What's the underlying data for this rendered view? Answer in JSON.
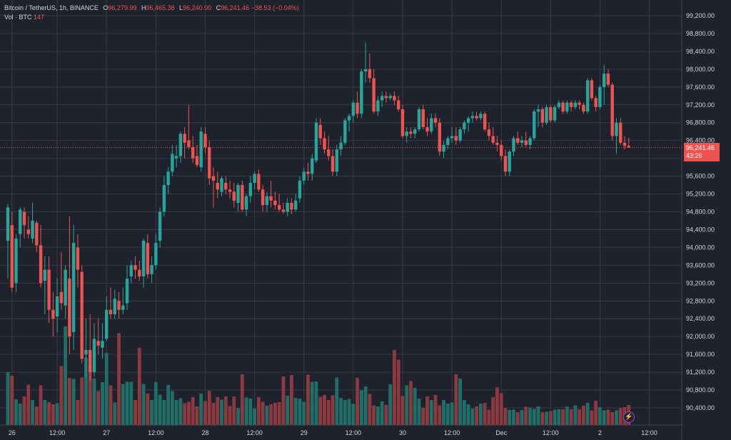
{
  "legend": {
    "symbol": "Bitcoin / TetherUS, 1h, BINANCE",
    "open_key": "O",
    "open": "96,279.99",
    "high_key": "H",
    "high": "96,465.38",
    "low_key": "L",
    "low": "96,240.00",
    "close_key": "C",
    "close": "96,241.46",
    "change": "−38.53 (−0.04%)",
    "vol_label": "Vol · BTC",
    "vol_value": "147"
  },
  "price_tag": {
    "price": "96,241.46",
    "countdown": "43:26"
  },
  "colors": {
    "background": "#1e222d",
    "grid": "#363a45",
    "up": "#26a69a",
    "down": "#ef5350",
    "up_volume": "#1f6f68",
    "down_volume": "#8c3a3f"
  },
  "icons": {
    "indicator_badge": "lightning-bolt-icon"
  },
  "chart_data": {
    "type": "candlestick",
    "symbol": "Bitcoin / TetherUS",
    "interval": "1h",
    "exchange": "BINANCE",
    "y_ticks": [
      90400,
      90800,
      91200,
      91600,
      92000,
      92400,
      92800,
      93200,
      93600,
      94000,
      94400,
      94800,
      95200,
      95600,
      96000,
      96400,
      96800,
      97200,
      97600,
      98000,
      98400,
      98800,
      99200
    ],
    "y_tick_labels": [
      "90,400.00",
      "90,800.00",
      "91,200.00",
      "91,600.00",
      "92,000.00",
      "92,400.00",
      "92,800.00",
      "93,200.00",
      "93,600.00",
      "94,000.00",
      "94,400.00",
      "94,800.00",
      "95,200.00",
      "95,600.00",
      "96,000.00",
      "96,400.00",
      "96,800.00",
      "97,200.00",
      "97,600.00",
      "98,000.00",
      "98,400.00",
      "98,800.00",
      "99,200.00"
    ],
    "x_tick_labels": [
      "26",
      "12:00",
      "27",
      "12:00",
      "28",
      "12:00",
      "29",
      "12:00",
      "30",
      "12:00",
      "Dec",
      "12:00",
      "2",
      "12:00"
    ],
    "x_tick_bars": [
      1,
      12,
      24,
      36,
      48,
      60,
      72,
      84,
      96,
      108,
      120,
      132,
      144,
      156
    ],
    "ylim": [
      90200,
      99500
    ],
    "last_price": 96241.46,
    "candles": [
      {
        "o": 94150,
        "h": 94980,
        "l": 93300,
        "c": 94900
      },
      {
        "o": 94500,
        "h": 94800,
        "l": 93000,
        "c": 93100
      },
      {
        "o": 93200,
        "h": 94300,
        "l": 93000,
        "c": 94200
      },
      {
        "o": 94300,
        "h": 94900,
        "l": 94000,
        "c": 94850
      },
      {
        "o": 94800,
        "h": 94900,
        "l": 94200,
        "c": 94500
      },
      {
        "o": 94400,
        "h": 94700,
        "l": 94200,
        "c": 94300
      },
      {
        "o": 94200,
        "h": 95000,
        "l": 94100,
        "c": 94600
      },
      {
        "o": 94550,
        "h": 94600,
        "l": 93900,
        "c": 94050
      },
      {
        "o": 94050,
        "h": 94500,
        "l": 93100,
        "c": 93200
      },
      {
        "o": 93250,
        "h": 93800,
        "l": 92500,
        "c": 93500
      },
      {
        "o": 93500,
        "h": 93800,
        "l": 92300,
        "c": 92600
      },
      {
        "o": 92600,
        "h": 93000,
        "l": 92000,
        "c": 92400
      },
      {
        "o": 92450,
        "h": 93300,
        "l": 92100,
        "c": 92900
      },
      {
        "o": 93000,
        "h": 93900,
        "l": 92600,
        "c": 92750
      },
      {
        "o": 92700,
        "h": 93600,
        "l": 92400,
        "c": 93500
      },
      {
        "o": 93300,
        "h": 94700,
        "l": 91600,
        "c": 92000
      },
      {
        "o": 92100,
        "h": 94500,
        "l": 91700,
        "c": 94100
      },
      {
        "o": 94000,
        "h": 94300,
        "l": 93100,
        "c": 93500
      },
      {
        "o": 93450,
        "h": 93600,
        "l": 91400,
        "c": 91500
      },
      {
        "o": 91600,
        "h": 92400,
        "l": 91100,
        "c": 91700
      },
      {
        "o": 91700,
        "h": 92500,
        "l": 91000,
        "c": 91200
      },
      {
        "o": 91200,
        "h": 92300,
        "l": 91100,
        "c": 91950
      },
      {
        "o": 91900,
        "h": 92400,
        "l": 91600,
        "c": 91800
      },
      {
        "o": 91750,
        "h": 92300,
        "l": 91500,
        "c": 91900
      },
      {
        "o": 91950,
        "h": 92900,
        "l": 91900,
        "c": 92600
      },
      {
        "o": 92600,
        "h": 93100,
        "l": 92400,
        "c": 92500
      },
      {
        "o": 92500,
        "h": 93050,
        "l": 92400,
        "c": 92850
      },
      {
        "o": 92800,
        "h": 93000,
        "l": 92400,
        "c": 92600
      },
      {
        "o": 92600,
        "h": 93100,
        "l": 92500,
        "c": 92700
      },
      {
        "o": 92750,
        "h": 93600,
        "l": 92600,
        "c": 93300
      },
      {
        "o": 93350,
        "h": 93700,
        "l": 93200,
        "c": 93600
      },
      {
        "o": 93600,
        "h": 93800,
        "l": 93300,
        "c": 93500
      },
      {
        "o": 93500,
        "h": 93700,
        "l": 93250,
        "c": 93350
      },
      {
        "o": 93350,
        "h": 94200,
        "l": 93100,
        "c": 94150
      },
      {
        "o": 94100,
        "h": 94300,
        "l": 93300,
        "c": 93400
      },
      {
        "o": 93400,
        "h": 93800,
        "l": 93200,
        "c": 93600
      },
      {
        "o": 93600,
        "h": 94300,
        "l": 93500,
        "c": 94100
      },
      {
        "o": 94150,
        "h": 94900,
        "l": 94000,
        "c": 94800
      },
      {
        "o": 94800,
        "h": 95600,
        "l": 94700,
        "c": 95400
      },
      {
        "o": 95400,
        "h": 95800,
        "l": 95200,
        "c": 95700
      },
      {
        "o": 95700,
        "h": 96300,
        "l": 95600,
        "c": 96100
      },
      {
        "o": 96000,
        "h": 96300,
        "l": 95800,
        "c": 96050
      },
      {
        "o": 96050,
        "h": 96600,
        "l": 95900,
        "c": 96550
      },
      {
        "o": 96550,
        "h": 96700,
        "l": 96000,
        "c": 96350
      },
      {
        "o": 96400,
        "h": 97200,
        "l": 96200,
        "c": 96250
      },
      {
        "o": 96250,
        "h": 96500,
        "l": 95900,
        "c": 96000
      },
      {
        "o": 96050,
        "h": 96300,
        "l": 95800,
        "c": 95850
      },
      {
        "o": 95800,
        "h": 96700,
        "l": 95700,
        "c": 96600
      },
      {
        "o": 96550,
        "h": 96700,
        "l": 96100,
        "c": 96250
      },
      {
        "o": 96250,
        "h": 96400,
        "l": 95400,
        "c": 95550
      },
      {
        "o": 95600,
        "h": 95800,
        "l": 94900,
        "c": 95500
      },
      {
        "o": 95450,
        "h": 95700,
        "l": 95100,
        "c": 95300
      },
      {
        "o": 95250,
        "h": 95600,
        "l": 95150,
        "c": 95550
      },
      {
        "o": 95450,
        "h": 95600,
        "l": 95200,
        "c": 95300
      },
      {
        "o": 95300,
        "h": 95500,
        "l": 95100,
        "c": 95250
      },
      {
        "o": 95250,
        "h": 95450,
        "l": 94900,
        "c": 95050
      },
      {
        "o": 95000,
        "h": 95450,
        "l": 94800,
        "c": 95400
      },
      {
        "o": 95400,
        "h": 95500,
        "l": 94800,
        "c": 94850
      },
      {
        "o": 94850,
        "h": 95200,
        "l": 94700,
        "c": 95150
      },
      {
        "o": 95150,
        "h": 95600,
        "l": 95000,
        "c": 95450
      },
      {
        "o": 95450,
        "h": 95700,
        "l": 95300,
        "c": 95650
      },
      {
        "o": 95650,
        "h": 95750,
        "l": 95250,
        "c": 95300
      },
      {
        "o": 95300,
        "h": 95400,
        "l": 94800,
        "c": 94950
      },
      {
        "o": 94950,
        "h": 95250,
        "l": 94800,
        "c": 95150
      },
      {
        "o": 95150,
        "h": 95500,
        "l": 94900,
        "c": 95050
      },
      {
        "o": 95050,
        "h": 95250,
        "l": 94850,
        "c": 94950
      },
      {
        "o": 94950,
        "h": 95200,
        "l": 94800,
        "c": 94850
      },
      {
        "o": 94850,
        "h": 95000,
        "l": 94750,
        "c": 94800
      },
      {
        "o": 94800,
        "h": 95100,
        "l": 94700,
        "c": 95000
      },
      {
        "o": 95000,
        "h": 95100,
        "l": 94750,
        "c": 94850
      },
      {
        "o": 94850,
        "h": 95200,
        "l": 94800,
        "c": 95050
      },
      {
        "o": 95100,
        "h": 95600,
        "l": 95000,
        "c": 95500
      },
      {
        "o": 95500,
        "h": 95800,
        "l": 95400,
        "c": 95700
      },
      {
        "o": 95700,
        "h": 95900,
        "l": 95500,
        "c": 95650
      },
      {
        "o": 95650,
        "h": 96100,
        "l": 95500,
        "c": 96000
      },
      {
        "o": 95950,
        "h": 96900,
        "l": 95900,
        "c": 96800
      },
      {
        "o": 96750,
        "h": 96900,
        "l": 96300,
        "c": 96450
      },
      {
        "o": 96450,
        "h": 96600,
        "l": 96100,
        "c": 96200
      },
      {
        "o": 96200,
        "h": 96500,
        "l": 95950,
        "c": 96050
      },
      {
        "o": 96050,
        "h": 96200,
        "l": 95600,
        "c": 95700
      },
      {
        "o": 95700,
        "h": 96300,
        "l": 95600,
        "c": 96200
      },
      {
        "o": 96200,
        "h": 96500,
        "l": 96050,
        "c": 96350
      },
      {
        "o": 96350,
        "h": 96900,
        "l": 96300,
        "c": 96850
      },
      {
        "o": 96850,
        "h": 97000,
        "l": 96600,
        "c": 96950
      },
      {
        "o": 96950,
        "h": 97300,
        "l": 96800,
        "c": 97250
      },
      {
        "o": 97250,
        "h": 97500,
        "l": 96900,
        "c": 97000
      },
      {
        "o": 97000,
        "h": 98000,
        "l": 96900,
        "c": 97950
      },
      {
        "o": 97950,
        "h": 98600,
        "l": 97700,
        "c": 98000
      },
      {
        "o": 98000,
        "h": 98350,
        "l": 97700,
        "c": 97800
      },
      {
        "o": 97800,
        "h": 98000,
        "l": 97000,
        "c": 97050
      },
      {
        "o": 97050,
        "h": 97400,
        "l": 96950,
        "c": 97300
      },
      {
        "o": 97300,
        "h": 97500,
        "l": 97150,
        "c": 97400
      },
      {
        "o": 97400,
        "h": 97500,
        "l": 97250,
        "c": 97350
      },
      {
        "o": 97350,
        "h": 97450,
        "l": 97300,
        "c": 97400
      },
      {
        "o": 97400,
        "h": 97500,
        "l": 97200,
        "c": 97300
      },
      {
        "o": 97300,
        "h": 97400,
        "l": 97050,
        "c": 97100
      },
      {
        "o": 97100,
        "h": 97200,
        "l": 96450,
        "c": 96500
      },
      {
        "o": 96500,
        "h": 96700,
        "l": 96350,
        "c": 96600
      },
      {
        "o": 96600,
        "h": 96700,
        "l": 96450,
        "c": 96550
      },
      {
        "o": 96550,
        "h": 96700,
        "l": 96450,
        "c": 96650
      },
      {
        "o": 96650,
        "h": 97150,
        "l": 96600,
        "c": 97100
      },
      {
        "o": 97100,
        "h": 97200,
        "l": 96650,
        "c": 96700
      },
      {
        "o": 96700,
        "h": 96900,
        "l": 96500,
        "c": 96600
      },
      {
        "o": 96600,
        "h": 97000,
        "l": 96550,
        "c": 96900
      },
      {
        "o": 96900,
        "h": 97000,
        "l": 96700,
        "c": 96800
      },
      {
        "o": 96800,
        "h": 96900,
        "l": 96050,
        "c": 96150
      },
      {
        "o": 96150,
        "h": 96400,
        "l": 96000,
        "c": 96300
      },
      {
        "o": 96300,
        "h": 96500,
        "l": 96200,
        "c": 96450
      },
      {
        "o": 96450,
        "h": 96700,
        "l": 96350,
        "c": 96500
      },
      {
        "o": 96500,
        "h": 96700,
        "l": 96300,
        "c": 96400
      },
      {
        "o": 96400,
        "h": 96700,
        "l": 96350,
        "c": 96650
      },
      {
        "o": 96650,
        "h": 96850,
        "l": 96550,
        "c": 96800
      },
      {
        "o": 96800,
        "h": 96950,
        "l": 96600,
        "c": 96900
      },
      {
        "o": 96900,
        "h": 97050,
        "l": 96800,
        "c": 96950
      },
      {
        "o": 96950,
        "h": 97050,
        "l": 96850,
        "c": 96900
      },
      {
        "o": 96900,
        "h": 97050,
        "l": 96850,
        "c": 97000
      },
      {
        "o": 97000,
        "h": 97050,
        "l": 96600,
        "c": 96650
      },
      {
        "o": 96650,
        "h": 96800,
        "l": 96400,
        "c": 96500
      },
      {
        "o": 96500,
        "h": 96700,
        "l": 96300,
        "c": 96350
      },
      {
        "o": 96350,
        "h": 96500,
        "l": 96150,
        "c": 96300
      },
      {
        "o": 96300,
        "h": 96400,
        "l": 95950,
        "c": 96050
      },
      {
        "o": 96050,
        "h": 96200,
        "l": 95600,
        "c": 95700
      },
      {
        "o": 95700,
        "h": 96200,
        "l": 95600,
        "c": 96150
      },
      {
        "o": 96150,
        "h": 96500,
        "l": 96050,
        "c": 96450
      },
      {
        "o": 96450,
        "h": 96600,
        "l": 96300,
        "c": 96350
      },
      {
        "o": 96350,
        "h": 96500,
        "l": 96250,
        "c": 96400
      },
      {
        "o": 96400,
        "h": 96600,
        "l": 96250,
        "c": 96300
      },
      {
        "o": 96300,
        "h": 96500,
        "l": 96200,
        "c": 96450
      },
      {
        "o": 96450,
        "h": 97100,
        "l": 96400,
        "c": 97050
      },
      {
        "o": 97050,
        "h": 97200,
        "l": 96700,
        "c": 97100
      },
      {
        "o": 97100,
        "h": 97150,
        "l": 96700,
        "c": 96800
      },
      {
        "o": 96800,
        "h": 97200,
        "l": 96750,
        "c": 97150
      },
      {
        "o": 97150,
        "h": 97200,
        "l": 96800,
        "c": 96850
      },
      {
        "o": 96850,
        "h": 97200,
        "l": 96800,
        "c": 97150
      },
      {
        "o": 97150,
        "h": 97300,
        "l": 97100,
        "c": 97250
      },
      {
        "o": 97250,
        "h": 97300,
        "l": 97000,
        "c": 97050
      },
      {
        "o": 97050,
        "h": 97300,
        "l": 97000,
        "c": 97250
      },
      {
        "o": 97250,
        "h": 97300,
        "l": 97050,
        "c": 97150
      },
      {
        "o": 97150,
        "h": 97300,
        "l": 97100,
        "c": 97250
      },
      {
        "o": 97250,
        "h": 97300,
        "l": 97100,
        "c": 97200
      },
      {
        "o": 97200,
        "h": 97250,
        "l": 97000,
        "c": 97050
      },
      {
        "o": 97050,
        "h": 97800,
        "l": 97000,
        "c": 97750
      },
      {
        "o": 97750,
        "h": 97800,
        "l": 97300,
        "c": 97350
      },
      {
        "o": 97350,
        "h": 97400,
        "l": 97050,
        "c": 97150
      },
      {
        "o": 97150,
        "h": 97650,
        "l": 97100,
        "c": 97600
      },
      {
        "o": 97600,
        "h": 98100,
        "l": 97200,
        "c": 97900
      },
      {
        "o": 97900,
        "h": 98000,
        "l": 97600,
        "c": 97650
      },
      {
        "o": 97650,
        "h": 97700,
        "l": 96400,
        "c": 96500
      },
      {
        "o": 96500,
        "h": 96900,
        "l": 96100,
        "c": 96800
      },
      {
        "o": 96800,
        "h": 96900,
        "l": 96300,
        "c": 96350
      },
      {
        "o": 96350,
        "h": 96500,
        "l": 96200,
        "c": 96280
      },
      {
        "o": 96280,
        "h": 96465,
        "l": 96240,
        "c": 96241
      }
    ],
    "volumes": [
      1480,
      1380,
      720,
      600,
      800,
      1130,
      700,
      520,
      1110,
      700,
      640,
      580,
      610,
      1650,
      2760,
      1320,
      1290,
      700,
      1330,
      1890,
      1690,
      1300,
      950,
      1200,
      2020,
      1110,
      630,
      2570,
      1150,
      1210,
      1210,
      700,
      2160,
      1150,
      880,
      700,
      1200,
      850,
      700,
      1120,
      950,
      700,
      750,
      610,
      650,
      780,
      520,
      880,
      670,
      960,
      620,
      780,
      710,
      800,
      530,
      800,
      470,
      1420,
      770,
      740,
      460,
      780,
      650,
      540,
      580,
      620,
      640,
      1360,
      820,
      1400,
      760,
      740,
      650,
      1410,
      1210,
      1220,
      790,
      840,
      700,
      830,
      1330,
      760,
      700,
      730,
      600,
      1320,
      970,
      1080,
      870,
      550,
      520,
      660,
      560,
      1140,
      2100,
      1830,
      820,
      1110,
      1230,
      1040,
      740,
      480,
      800,
      700,
      840,
      550,
      700,
      600,
      630,
      1420,
      1300,
      700,
      580,
      460,
      520,
      600,
      620,
      430,
      780,
      1050,
      890,
      480,
      420,
      430,
      360,
      420,
      510,
      490,
      450,
      520,
      360,
      370,
      390,
      430,
      440,
      440,
      520,
      440,
      550,
      440,
      540,
      620,
      410,
      680,
      500,
      410,
      430,
      360,
      410,
      470,
      500,
      560,
      640,
      820,
      860,
      430,
      430,
      580,
      640
    ]
  }
}
